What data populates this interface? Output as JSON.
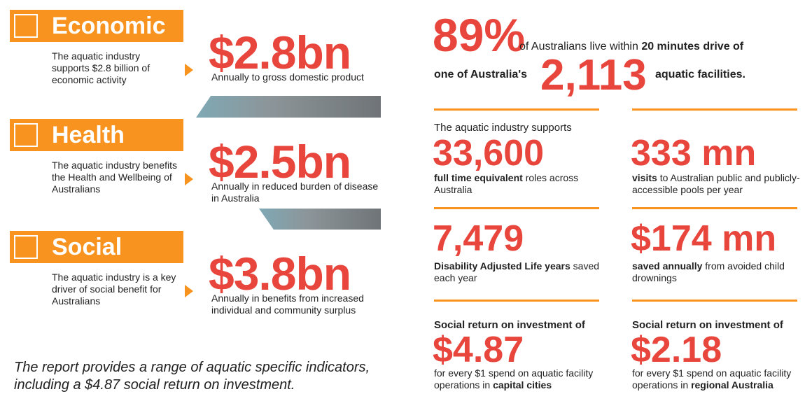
{
  "sections": [
    {
      "heading": "Economic",
      "description": "The aquatic industry supports $2.8 billion of economic activity",
      "figure": "$2.8bn",
      "figure_caption": "Annually to gross domestic product"
    },
    {
      "heading": "Health",
      "description": "The aquatic industry benefits the Health and Wellbeing of Australians",
      "figure": "$2.5bn",
      "figure_caption": "Annually in reduced burden of disease in Australia"
    },
    {
      "heading": "Social",
      "description": "The aquatic industry is a key driver of social benefit for Australians",
      "figure": "$3.8bn",
      "figure_caption": "Annually in benefits from increased individual and community surplus"
    }
  ],
  "caption": "The report provides a range of aquatic specific indicators, including a $4.87 social return on investment.",
  "headline": {
    "stat1": "89%",
    "text1": "of Australians live within ",
    "text1_bold": "20 minutes drive of",
    "text2_bold": "one of Australia's",
    "stat2": "2,113",
    "text3_bold": "aquatic facilities."
  },
  "stats": [
    {
      "intro": "The aquatic industry supports",
      "figure": "33,600",
      "caption": [
        {
          "text": "full time equivalent",
          "bold": true
        },
        {
          "text": " roles across Australia",
          "bold": false
        }
      ]
    },
    {
      "figure": "333 mn",
      "caption": [
        {
          "text": "visits",
          "bold": true
        },
        {
          "text": " to Australian public and publicly-accessible pools per year",
          "bold": false
        }
      ]
    },
    {
      "figure": "7,479",
      "caption": [
        {
          "text": "Disability Adjusted Life years",
          "bold": true
        },
        {
          "text": " saved each year",
          "bold": false
        }
      ]
    },
    {
      "figure": "$174 mn",
      "caption": [
        {
          "text": "saved annually",
          "bold": true
        },
        {
          "text": " from avoided child drownings",
          "bold": false
        }
      ]
    },
    {
      "intro": "Social return on investment of",
      "intro_bold": true,
      "figure": "$4.87",
      "caption": [
        {
          "text": "for every $1 spend on aquatic facility operations in ",
          "bold": false
        },
        {
          "text": "capital cities",
          "bold": true
        }
      ]
    },
    {
      "intro": "Social return on investment of",
      "intro_bold": true,
      "figure": "$2.18",
      "caption": [
        {
          "text": "for every $1 spend on aquatic facility operations in ",
          "bold": false
        },
        {
          "text": "regional Australia",
          "bold": true
        }
      ]
    }
  ]
}
